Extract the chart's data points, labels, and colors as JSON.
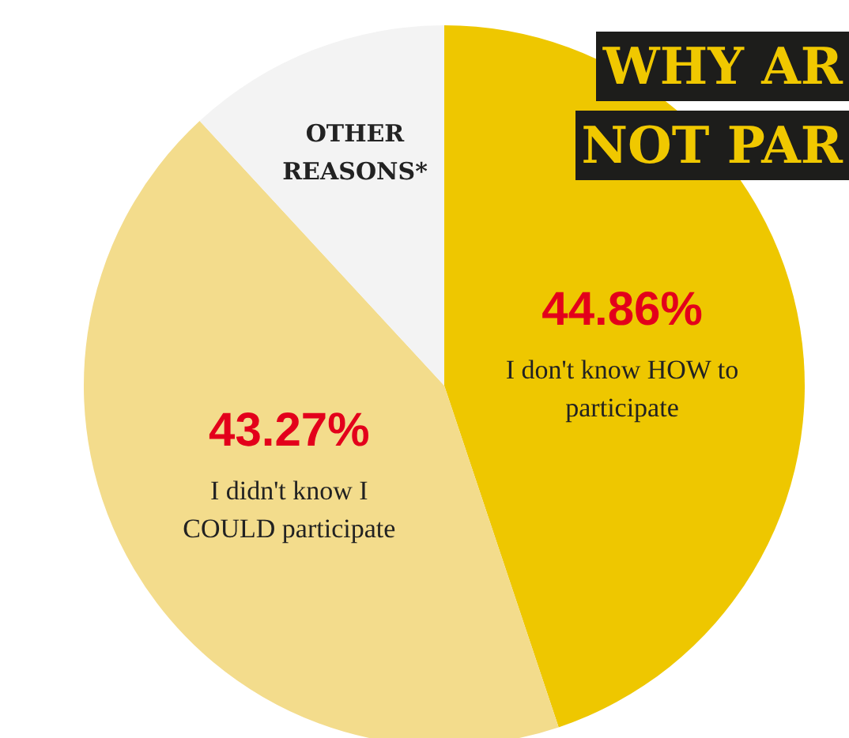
{
  "chart_data": {
    "type": "pie",
    "title": "WHY AR\nNOT PAR",
    "categories": [
      "I don't know HOW to participate",
      "I didn't know I COULD participate",
      "OTHER REASONS*"
    ],
    "values": [
      44.86,
      43.27,
      11.87
    ],
    "colors": [
      "#eec700",
      "#f3dc8c",
      "#f3f3f3"
    ],
    "value_labels": [
      "44.86%",
      "43.27%",
      null
    ]
  }
}
